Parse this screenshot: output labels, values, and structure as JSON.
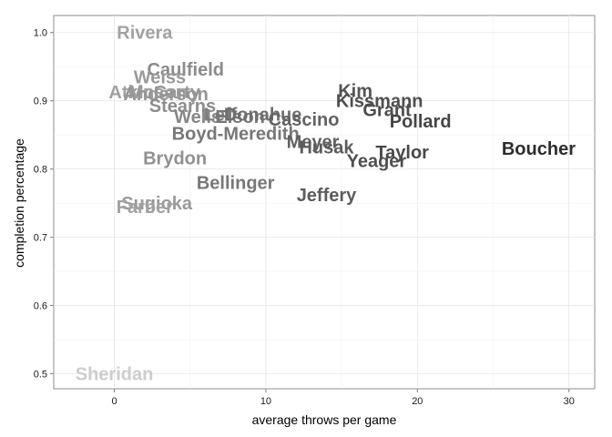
{
  "chart_data": {
    "type": "scatter",
    "title": "",
    "xlabel": "average throws per game",
    "ylabel": "completion percentage",
    "xlim": [
      -4,
      31.7
    ],
    "ylim": [
      0.478,
      1.025
    ],
    "x_ticks": [
      0,
      10,
      20,
      30
    ],
    "y_ticks": [
      0.5,
      0.6,
      0.7,
      0.8,
      0.9,
      1.0
    ],
    "x_tick_labels": [
      "0",
      "10",
      "20",
      "30"
    ],
    "y_tick_labels": [
      "0.5",
      "0.6",
      "0.7",
      "0.8",
      "0.9",
      "1.0"
    ],
    "grid": true,
    "label_color_scale": "gray shade by average throws per game (light = low, dark = high)",
    "points": [
      {
        "label": "Rivera",
        "x": 2.0,
        "y": 1.0
      },
      {
        "label": "Sheridan",
        "x": 0.0,
        "y": 0.5
      },
      {
        "label": "Caulfield",
        "x": 4.7,
        "y": 0.946
      },
      {
        "label": "Weiss",
        "x": 3.0,
        "y": 0.935
      },
      {
        "label": "McCarty",
        "x": 3.3,
        "y": 0.913
      },
      {
        "label": "Atkinson",
        "x": 2.2,
        "y": 0.913
      },
      {
        "label": "Anderson",
        "x": 3.4,
        "y": 0.91
      },
      {
        "label": "Stearns",
        "x": 4.5,
        "y": 0.893
      },
      {
        "label": "Wells",
        "x": 5.5,
        "y": 0.877
      },
      {
        "label": "Leff",
        "x": 7.0,
        "y": 0.88
      },
      {
        "label": "Elson",
        "x": 8.3,
        "y": 0.877
      },
      {
        "label": "Donahue",
        "x": 9.8,
        "y": 0.88
      },
      {
        "label": "Cascino",
        "x": 12.5,
        "y": 0.873
      },
      {
        "label": "Boyd-Meredith",
        "x": 8.0,
        "y": 0.852
      },
      {
        "label": "Meyer",
        "x": 13.1,
        "y": 0.84
      },
      {
        "label": "Husak",
        "x": 14.0,
        "y": 0.832
      },
      {
        "label": "Kim",
        "x": 15.9,
        "y": 0.915
      },
      {
        "label": "Kissmann",
        "x": 17.5,
        "y": 0.9
      },
      {
        "label": "Grant",
        "x": 18.0,
        "y": 0.887
      },
      {
        "label": "Pollard",
        "x": 20.2,
        "y": 0.87
      },
      {
        "label": "Taylor",
        "x": 19.0,
        "y": 0.825
      },
      {
        "label": "Yeager",
        "x": 17.3,
        "y": 0.812
      },
      {
        "label": "Boucher",
        "x": 28.0,
        "y": 0.83
      },
      {
        "label": "Brydon",
        "x": 4.0,
        "y": 0.816
      },
      {
        "label": "Bellinger",
        "x": 8.0,
        "y": 0.78
      },
      {
        "label": "Jeffery",
        "x": 14.0,
        "y": 0.762
      },
      {
        "label": "Sugioka",
        "x": 2.8,
        "y": 0.75
      },
      {
        "label": "Farber",
        "x": 2.0,
        "y": 0.745
      }
    ]
  }
}
